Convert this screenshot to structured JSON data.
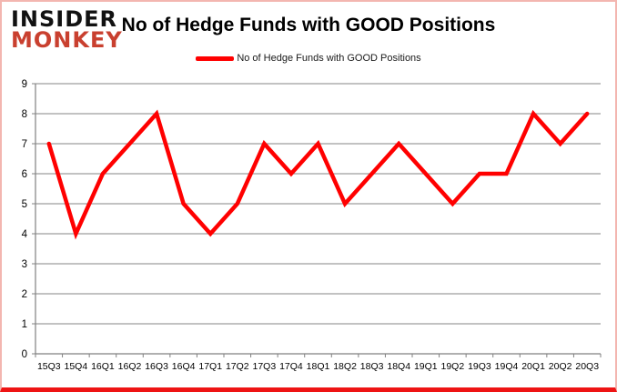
{
  "header": {
    "logo_line1": "INSIDER",
    "logo_line2": "MONKEY",
    "title": "No of Hedge Funds with GOOD Positions"
  },
  "legend": {
    "label": "No of Hedge Funds with GOOD Positions",
    "color": "#ff0000"
  },
  "colors": {
    "line": "#ff0000",
    "grid": "#848484",
    "axis": "#808080",
    "text": "#000000",
    "logo_red": "#c9402f",
    "border_pink": "#f3b6b0",
    "border_bottom_red": "#ee1414"
  },
  "chart_data": {
    "type": "line",
    "title": "No of Hedge Funds with GOOD Positions",
    "series": [
      {
        "name": "No of Hedge Funds with GOOD Positions",
        "values": [
          7,
          4,
          6,
          7,
          8,
          5,
          4,
          5,
          7,
          6,
          7,
          5,
          6,
          7,
          6,
          5,
          6,
          6,
          8,
          7,
          8
        ],
        "color": "#ff0000"
      }
    ],
    "categories": [
      "15Q3",
      "15Q4",
      "16Q1",
      "16Q2",
      "16Q3",
      "16Q4",
      "17Q1",
      "17Q2",
      "17Q3",
      "17Q4",
      "18Q1",
      "18Q2",
      "18Q3",
      "18Q4",
      "19Q1",
      "19Q2",
      "19Q3",
      "19Q4",
      "20Q1",
      "20Q2",
      "20Q3"
    ],
    "xlabel": "",
    "ylabel": "",
    "ylim": [
      0,
      9
    ],
    "y_ticks": [
      0,
      1,
      2,
      3,
      4,
      5,
      6,
      7,
      8,
      9
    ],
    "grid": true,
    "legend_position": "top-center"
  }
}
